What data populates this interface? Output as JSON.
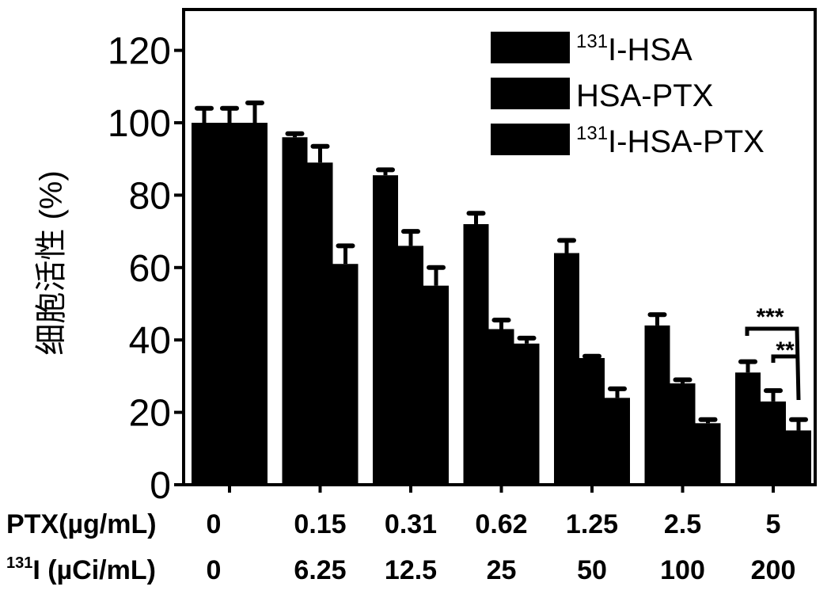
{
  "chart_data": {
    "type": "bar",
    "title": "",
    "ylabel": "细胞活性 (%)",
    "ylim": [
      0,
      131
    ],
    "yticks": [
      0,
      20,
      40,
      60,
      80,
      100,
      120
    ],
    "categories_rows": [
      {
        "label": "PTX(µg/mL)",
        "values": [
          "0",
          "0.15",
          "0.31",
          "0.62",
          "1.25",
          "2.5",
          "5"
        ]
      },
      {
        "label_sup": "131",
        "label": "I (µCi/mL)",
        "values": [
          "0",
          "6.25",
          "12.5",
          "25",
          "50",
          "100",
          "200"
        ]
      }
    ],
    "series": [
      {
        "name_sup": "131",
        "name": "I-HSA",
        "values": [
          100,
          96,
          85.5,
          72,
          64,
          44,
          31
        ],
        "errors": [
          4,
          1,
          1.5,
          3,
          3.5,
          3,
          3
        ]
      },
      {
        "name_sup": "",
        "name": "HSA-PTX",
        "values": [
          100,
          89,
          66,
          43,
          35,
          28,
          23
        ],
        "errors": [
          4,
          4.5,
          4,
          2.5,
          0.5,
          1,
          3
        ]
      },
      {
        "name_sup": "131",
        "name": "I-HSA-PTX",
        "values": [
          100,
          61,
          55,
          39,
          24,
          17,
          15
        ],
        "errors": [
          5.5,
          5,
          5,
          1.5,
          2.5,
          1,
          3
        ]
      }
    ],
    "annotations": [
      {
        "text": "***",
        "compare": "I-HSA vs I-HSA-PTX at 5 µg/mL"
      },
      {
        "text": "**",
        "compare": "HSA-PTX vs I-HSA-PTX at 5 µg/mL"
      }
    ],
    "legend_position": "top-right",
    "color": "#000000"
  }
}
